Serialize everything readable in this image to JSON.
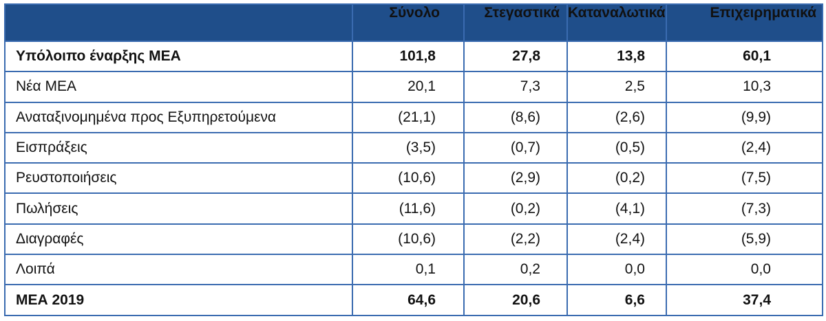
{
  "table": {
    "headers": [
      "",
      "Σύνολο",
      "Στεγαστικά",
      "Καταναλωτικά",
      "Επιχειρηματικά"
    ],
    "rows": [
      {
        "label": "Υπόλοιπο έναρξης ΜΕΑ",
        "bold": true,
        "values": [
          "101,8",
          "27,8",
          "13,8",
          "60,1"
        ]
      },
      {
        "label": "Νέα ΜΕΑ",
        "bold": false,
        "values": [
          "20,1",
          "7,3",
          "2,5",
          "10,3"
        ]
      },
      {
        "label": "Αναταξινομημένα προς Εξυπηρετούμενα",
        "bold": false,
        "values": [
          "(21,1)",
          "(8,6)",
          "(2,6)",
          "(9,9)"
        ]
      },
      {
        "label": "Εισπράξεις",
        "bold": false,
        "values": [
          "(3,5)",
          "(0,7)",
          "(0,5)",
          "(2,4)"
        ]
      },
      {
        "label": "Ρευστοποιήσεις",
        "bold": false,
        "values": [
          "(10,6)",
          "(2,9)",
          "(0,2)",
          "(7,5)"
        ]
      },
      {
        "label": "Πωλήσεις",
        "bold": false,
        "values": [
          "(11,6)",
          "(0,2)",
          "(4,1)",
          "(7,3)"
        ]
      },
      {
        "label": "Διαγραφές",
        "bold": false,
        "values": [
          "(10,6)",
          "(2,2)",
          "(2,4)",
          "(5,9)"
        ]
      },
      {
        "label": "Λοιπά",
        "bold": false,
        "values": [
          "0,1",
          "0,2",
          "0,0",
          "0,0"
        ]
      },
      {
        "label": "ΜΕΑ 2019",
        "bold": true,
        "values": [
          "64,6",
          "20,6",
          "6,6",
          "37,4"
        ]
      }
    ]
  },
  "colors": {
    "header_bg": "#1f4e8a",
    "header_text": "#ffffff",
    "border": "#3a6bb0",
    "body_text": "#111111"
  }
}
